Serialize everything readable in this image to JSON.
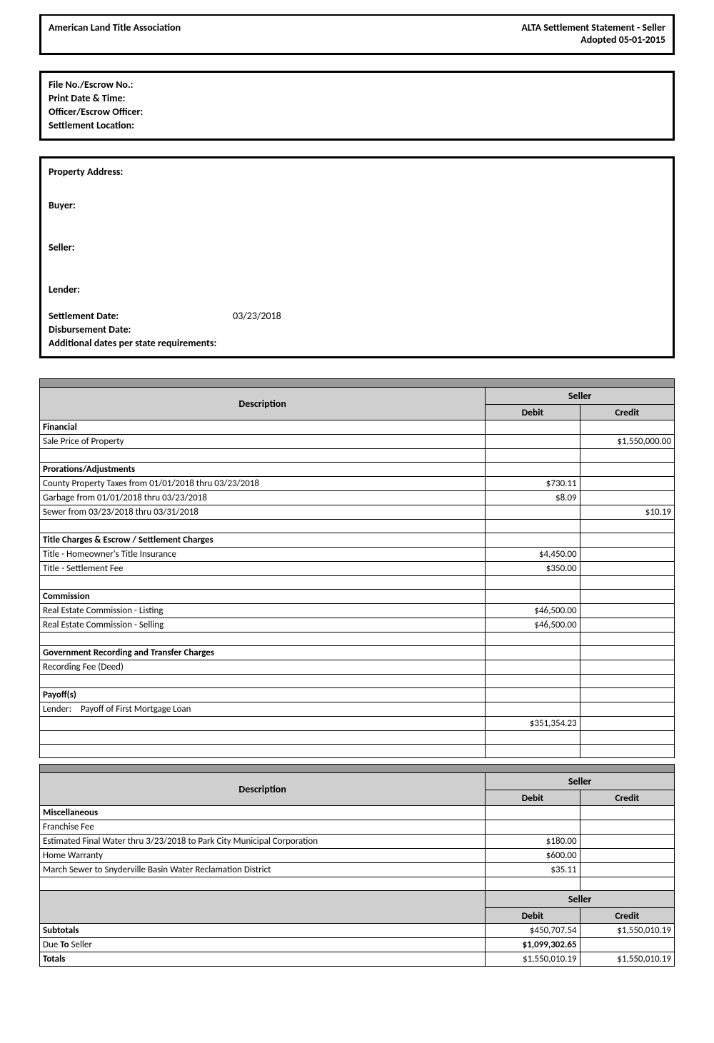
{
  "header": {
    "org": "American Land Title Association",
    "title": "ALTA Settlement Statement - Seller",
    "adopted": "Adopted 05-01-2015"
  },
  "file_box": {
    "file_no_label": "File No./Escrow No.:",
    "print_date_label": "Print Date & Time:",
    "officer_label": "Officer/Escrow Officer:",
    "location_label": "Settlement Location:"
  },
  "party_box": {
    "property_label": "Property Address:",
    "buyer_label": "Buyer:",
    "seller_label": "Seller:",
    "lender_label": "Lender:",
    "settlement_date_label": "Settlement Date:",
    "settlement_date_value": "03/23/2018",
    "disbursement_label": "Disbursement Date:",
    "additional_dates_label": "Additional dates per state requirements:"
  },
  "table1": {
    "desc_header": "Description",
    "seller_header": "Seller",
    "debit_header": "Debit",
    "credit_header": "Credit",
    "rows": [
      {
        "type": "section",
        "desc": "Financial"
      },
      {
        "type": "item",
        "desc": "Sale Price of Property",
        "debit": "",
        "credit": "$1,550,000.00"
      },
      {
        "type": "blank"
      },
      {
        "type": "section",
        "desc": "Prorations/Adjustments"
      },
      {
        "type": "item",
        "desc": "County Property Taxes from 01/01/2018 thru 03/23/2018",
        "debit": "$730.11",
        "credit": ""
      },
      {
        "type": "item",
        "desc": "Garbage from 01/01/2018 thru 03/23/2018",
        "debit": "$8.09",
        "credit": ""
      },
      {
        "type": "item",
        "desc": "Sewer from 03/23/2018 thru 03/31/2018",
        "debit": "",
        "credit": "$10.19"
      },
      {
        "type": "blank"
      },
      {
        "type": "section",
        "desc": "Title Charges & Escrow / Settlement Charges"
      },
      {
        "type": "item",
        "desc": "Title - Homeowner's Title Insurance",
        "debit": "$4,450.00",
        "credit": ""
      },
      {
        "type": "item",
        "desc": "Title - Settlement Fee",
        "debit": "$350.00",
        "credit": ""
      },
      {
        "type": "blank"
      },
      {
        "type": "section",
        "desc": "Commission"
      },
      {
        "type": "item",
        "desc": "Real Estate Commission - Listing",
        "debit": "$46,500.00",
        "credit": ""
      },
      {
        "type": "item",
        "desc": "Real Estate Commission - Selling",
        "debit": "$46,500.00",
        "credit": ""
      },
      {
        "type": "blank"
      },
      {
        "type": "section",
        "desc": "Government Recording and Transfer Charges"
      },
      {
        "type": "item",
        "desc": "Recording Fee (Deed)",
        "debit": "",
        "credit": ""
      },
      {
        "type": "blank"
      },
      {
        "type": "section",
        "desc": "Payoff(s)"
      },
      {
        "type": "payoff",
        "lender": "Lender:",
        "desc": "Payoff of First Mortgage Loan"
      },
      {
        "type": "item",
        "desc": "",
        "debit": "$351,354.23",
        "credit": ""
      },
      {
        "type": "blank"
      },
      {
        "type": "blank"
      }
    ]
  },
  "table2": {
    "desc_header": "Description",
    "seller_header": "Seller",
    "debit_header": "Debit",
    "credit_header": "Credit",
    "rows": [
      {
        "type": "section",
        "desc": "Miscellaneous"
      },
      {
        "type": "item",
        "desc": "Franchise Fee",
        "debit": "",
        "credit": ""
      },
      {
        "type": "item",
        "desc": "Estimated Final Water thru 3/23/2018 to Park City Municipal Corporation",
        "debit": "$180.00",
        "credit": ""
      },
      {
        "type": "item",
        "desc": "Home Warranty",
        "debit": "$600.00",
        "credit": ""
      },
      {
        "type": "item",
        "desc": "March Sewer to Snyderville Basin Water Reclamation District",
        "debit": "$35.11",
        "credit": ""
      },
      {
        "type": "blank"
      }
    ],
    "seller_header2": "Seller",
    "debit_header2": "Debit",
    "credit_header2": "Credit",
    "subtotals_label": "Subtotals",
    "subtotals_debit": "$450,707.54",
    "subtotals_credit": "$1,550,010.19",
    "due_label": "Due To Seller",
    "due_debit": "$1,099,302.65",
    "totals_label": "Totals",
    "totals_debit": "$1,550,010.19",
    "totals_credit": "$1,550,010.19"
  }
}
